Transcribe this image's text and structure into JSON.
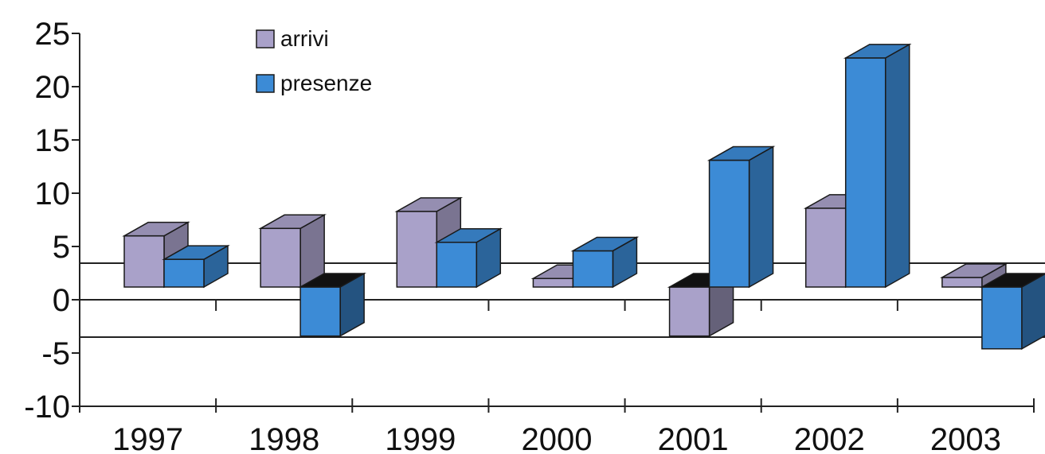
{
  "chart_data": {
    "type": "bar",
    "categories": [
      "1997",
      "1998",
      "1999",
      "2000",
      "2001",
      "2002",
      "2003"
    ],
    "series": [
      {
        "name": "arrivi",
        "values": [
          4.8,
          5.5,
          7.1,
          0.8,
          -4.6,
          7.4,
          0.9
        ],
        "color": "#a9a1c9"
      },
      {
        "name": "presenze",
        "values": [
          2.6,
          -4.6,
          4.2,
          3.4,
          11.9,
          21.5,
          -5.8
        ],
        "color": "#3c8bd6"
      }
    ],
    "yticks": [
      "25",
      "20",
      "15",
      "10",
      "5",
      "0",
      "-5",
      "-10"
    ],
    "ylim": [
      -10,
      25
    ],
    "legend_position": "top-left",
    "grid": false,
    "title": "",
    "xlabel": "",
    "ylabel": ""
  }
}
